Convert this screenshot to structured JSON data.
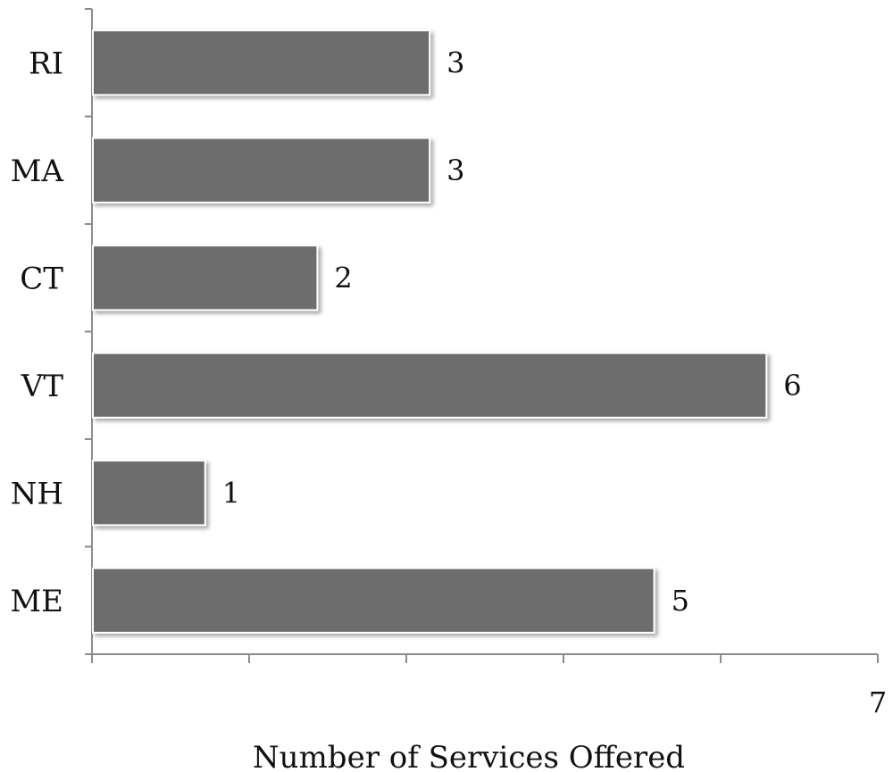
{
  "chart_data": {
    "type": "bar",
    "orientation": "horizontal",
    "categories": [
      "ME",
      "NH",
      "VT",
      "CT",
      "MA",
      "RI"
    ],
    "values": [
      5,
      1,
      6,
      2,
      3,
      3
    ],
    "data_labels": [
      "5",
      "1",
      "6",
      "2",
      "3",
      "3"
    ],
    "xlabel": "Number of Services Offered",
    "ylabel": "",
    "xlim": [
      0,
      7
    ],
    "x_tick_labels_visible": [
      "7"
    ],
    "grid": false,
    "legend": "none",
    "bar_color": "#6d6d6d",
    "bar_edge_color": "#ffffff"
  }
}
